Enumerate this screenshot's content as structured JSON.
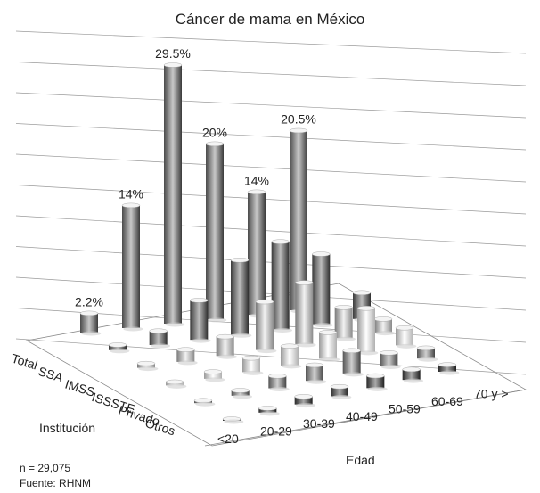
{
  "chart_data": {
    "type": "bar",
    "title": "Cáncer de mama en México",
    "xlabel": "Edad",
    "ylabel": "Institución",
    "categories": [
      "<20",
      "20-29",
      "30-39",
      "40-49",
      "50-59",
      "60-69",
      "70 y >"
    ],
    "ylim": [
      0,
      33
    ],
    "grid": true,
    "series": [
      {
        "name": "Total",
        "values": [
          2.2,
          14,
          29.5,
          20,
          14,
          20.5,
          null
        ]
      },
      {
        "name": "SSA",
        "values": [
          0.6,
          1.6,
          4.5,
          8.5,
          10,
          8,
          3
        ]
      },
      {
        "name": "IMSS",
        "values": [
          0.5,
          1.4,
          2.2,
          5.5,
          7,
          3.5,
          1.5
        ]
      },
      {
        "name": "ISSSTE",
        "values": [
          0.4,
          0.8,
          1.6,
          2.2,
          3,
          5,
          2
        ]
      },
      {
        "name": "Privado",
        "values": [
          0.3,
          0.6,
          1.4,
          1.8,
          2.6,
          1.5,
          1.2
        ]
      },
      {
        "name": "Otros",
        "values": [
          0.2,
          0.5,
          0.9,
          1.1,
          1.4,
          1.2,
          0.8
        ]
      }
    ],
    "data_labels": {
      "Total": [
        "2.2%",
        "14%",
        "29.5%",
        "20%",
        "14%",
        "20.5%",
        ""
      ]
    },
    "notes": [
      "n = 29,075",
      "Fuente: RHNM"
    ]
  }
}
